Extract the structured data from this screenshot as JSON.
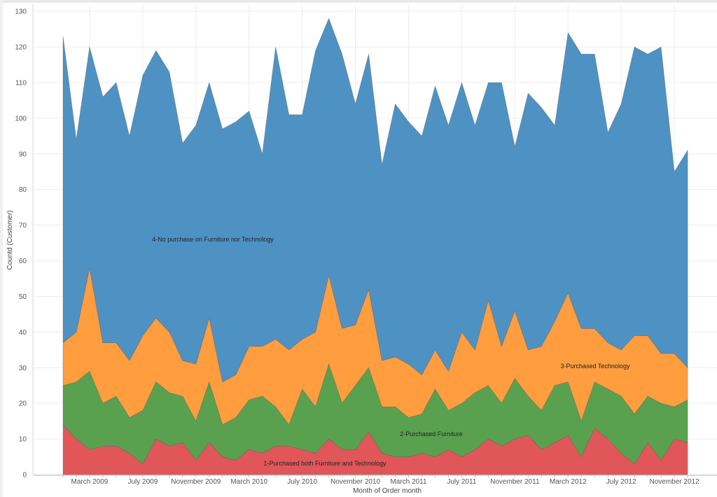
{
  "chart_data": {
    "type": "area",
    "stacked": true,
    "title": "",
    "xlabel": "Month of Order month",
    "ylabel": "Countd (Customer)",
    "ylim": [
      0,
      132
    ],
    "yticks": [
      0,
      10,
      20,
      30,
      40,
      50,
      60,
      70,
      80,
      90,
      100,
      110,
      120,
      130
    ],
    "xticks": [
      "March 2009",
      "July 2009",
      "November 2009",
      "March 2010",
      "July 2010",
      "November 2010",
      "March 2011",
      "July 2011",
      "November 2011",
      "March 2012",
      "July 2012",
      "November 2012"
    ],
    "x": [
      "January 2009",
      "February 2009",
      "March 2009",
      "April 2009",
      "May 2009",
      "June 2009",
      "July 2009",
      "August 2009",
      "September 2009",
      "October 2009",
      "November 2009",
      "December 2009",
      "January 2010",
      "February 2010",
      "March 2010",
      "April 2010",
      "May 2010",
      "June 2010",
      "July 2010",
      "August 2010",
      "September 2010",
      "October 2010",
      "November 2010",
      "December 2010",
      "January 2011",
      "February 2011",
      "March 2011",
      "April 2011",
      "May 2011",
      "June 2011",
      "July 2011",
      "August 2011",
      "September 2011",
      "October 2011",
      "November 2011",
      "December 2011",
      "January 2012",
      "February 2012",
      "March 2012",
      "April 2012",
      "May 2012",
      "June 2012",
      "July 2012",
      "August 2012",
      "September 2012",
      "October 2012",
      "November 2012",
      "December 2012"
    ],
    "grid": true,
    "series": [
      {
        "name": "1-Purchased both Furniture and Technology",
        "color": "#e15759",
        "values": [
          14,
          10,
          7,
          8,
          8,
          6,
          3,
          10,
          8,
          9,
          4,
          9,
          5,
          4,
          7,
          6,
          8,
          8,
          7,
          6,
          10,
          7,
          7,
          12,
          6,
          5,
          5,
          6,
          5,
          7,
          5,
          7,
          10,
          8,
          10,
          11,
          7,
          9,
          11,
          5,
          13,
          10,
          6,
          3,
          9,
          4,
          10,
          9
        ]
      },
      {
        "name": "2-Purchased Furniture",
        "color": "#59a14f",
        "values": [
          11,
          16,
          22,
          12,
          14,
          10,
          15,
          16,
          15,
          13,
          11,
          17,
          9,
          12,
          14,
          16,
          11,
          6,
          17,
          13,
          21,
          13,
          18,
          18,
          13,
          14,
          11,
          11,
          19,
          11,
          15,
          16,
          15,
          12,
          17,
          11,
          11,
          16,
          15,
          10,
          13,
          14,
          16,
          14,
          13,
          16,
          9,
          12
        ]
      },
      {
        "name": "3-Purchased Technology",
        "color": "#ff9d3f",
        "values": [
          12,
          14,
          29,
          17,
          15,
          16,
          21,
          18,
          17,
          10,
          16,
          18,
          12,
          12,
          15,
          14,
          19,
          21,
          14,
          21,
          25,
          21,
          17,
          22,
          13,
          14,
          15,
          11,
          11,
          11,
          20,
          12,
          24,
          16,
          19,
          13,
          18,
          18,
          25,
          26,
          15,
          13,
          13,
          22,
          17,
          14,
          15,
          9
        ]
      },
      {
        "name": "4-No purchase on Furniture nor Technology",
        "color": "#4e92c4",
        "values": [
          86,
          54,
          62,
          69,
          73,
          63,
          73,
          75,
          73,
          61,
          67,
          66,
          71,
          71,
          66,
          54,
          82,
          66,
          63,
          79,
          72,
          77,
          62,
          66,
          55,
          71,
          68,
          67,
          74,
          69,
          70,
          63,
          61,
          74,
          46,
          72,
          67,
          55,
          73,
          77,
          77,
          59,
          69,
          81,
          79,
          86,
          51,
          61
        ]
      }
    ],
    "annotations": [
      {
        "series": 3,
        "text": "4-No purchase on Furniture nor Technology"
      },
      {
        "series": 2,
        "text": "3-Purchased Technology"
      },
      {
        "series": 1,
        "text": "2-Purchased Furniture"
      },
      {
        "series": 0,
        "text": "1-Purchased both Furniture and Technology"
      }
    ]
  }
}
